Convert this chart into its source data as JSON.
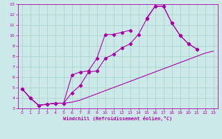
{
  "xlabel": "Windchill (Refroidissement éolien,°C)",
  "xlim": [
    -0.5,
    23.5
  ],
  "ylim": [
    3,
    13
  ],
  "xticks": [
    0,
    1,
    2,
    3,
    4,
    5,
    6,
    7,
    8,
    9,
    10,
    11,
    12,
    13,
    14,
    15,
    16,
    17,
    18,
    19,
    20,
    21,
    22,
    23
  ],
  "yticks": [
    3,
    4,
    5,
    6,
    7,
    8,
    9,
    10,
    11,
    12,
    13
  ],
  "bg_color": "#cce8e8",
  "line_color": "#aa00aa",
  "grid_color": "#99ccbb",
  "line1_x": [
    0,
    1,
    2,
    3,
    4,
    5,
    6,
    7,
    8,
    9,
    10,
    11,
    12,
    13,
    14,
    15,
    16,
    17,
    18,
    19,
    20,
    21,
    22,
    23
  ],
  "line1_y": [
    4.9,
    4.0,
    3.3,
    3.4,
    3.5,
    3.5,
    3.6,
    3.8,
    4.1,
    4.4,
    4.7,
    5.0,
    5.3,
    5.6,
    5.9,
    6.2,
    6.5,
    6.8,
    7.1,
    7.4,
    7.7,
    8.0,
    8.3,
    8.5
  ],
  "line2_x": [
    0,
    1,
    2,
    3,
    4,
    5,
    6,
    7,
    8,
    9,
    10,
    11,
    12,
    13,
    14,
    15,
    16,
    17,
    18,
    19,
    20,
    21,
    22,
    23
  ],
  "line2_y": [
    4.9,
    4.0,
    3.3,
    3.4,
    3.5,
    3.5,
    4.5,
    5.2,
    6.5,
    6.6,
    7.8,
    8.2,
    8.8,
    9.2,
    10.1,
    11.6,
    12.8,
    12.8,
    11.2,
    10.0,
    9.2,
    8.7,
    null,
    null
  ],
  "line3_x": [
    0,
    1,
    2,
    3,
    4,
    5,
    6,
    7,
    8,
    9,
    10,
    11,
    12,
    13,
    14,
    15,
    16,
    17,
    18,
    19,
    20,
    21,
    22,
    23
  ],
  "line3_y": [
    4.9,
    4.0,
    3.3,
    3.4,
    3.5,
    3.5,
    6.2,
    6.5,
    6.6,
    7.8,
    10.1,
    10.1,
    10.3,
    10.5,
    null,
    11.7,
    12.8,
    12.8,
    11.2,
    10.0,
    9.2,
    8.7,
    null,
    null
  ]
}
